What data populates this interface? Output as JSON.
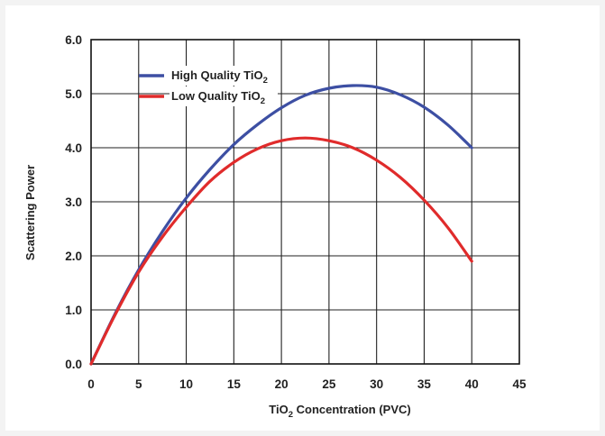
{
  "chart_data": {
    "type": "line",
    "title": "",
    "xlabel": {
      "pre": "TiO",
      "sub": "2",
      "post": " Concentration (PVC)"
    },
    "ylabel": "Scattering Power",
    "xlim": [
      0,
      45
    ],
    "ylim": [
      0,
      6
    ],
    "x_ticks": [
      "0",
      "5",
      "10",
      "15",
      "20",
      "25",
      "30",
      "35",
      "40",
      "45"
    ],
    "y_ticks": [
      "0.0",
      "1.0",
      "2.0",
      "3.0",
      "4.0",
      "5.0",
      "6.0"
    ],
    "grid": true,
    "legend_position": "top-left",
    "series": [
      {
        "name": {
          "pre": "High Quality TiO",
          "sub": "2"
        },
        "color": "#3d4fa3",
        "x": [
          0,
          2.5,
          5,
          7.5,
          10,
          12.5,
          15,
          17.5,
          20,
          22.5,
          25,
          27.5,
          30,
          32.5,
          35,
          37.5,
          40
        ],
        "y": [
          0.0,
          0.92,
          1.74,
          2.45,
          3.07,
          3.6,
          4.06,
          4.43,
          4.74,
          4.97,
          5.1,
          5.15,
          5.12,
          4.98,
          4.75,
          4.42,
          4.0
        ]
      },
      {
        "name": {
          "pre": "Low Quality TiO",
          "sub": "2"
        },
        "color": "#e02b2b",
        "x": [
          0,
          2.5,
          5,
          7.5,
          10,
          12.5,
          15,
          17.5,
          20,
          22.5,
          25,
          27.5,
          30,
          32.5,
          35,
          37.5,
          40
        ],
        "y": [
          0.0,
          0.9,
          1.7,
          2.35,
          2.9,
          3.38,
          3.73,
          3.98,
          4.13,
          4.18,
          4.13,
          4.0,
          3.77,
          3.45,
          3.03,
          2.52,
          1.9
        ]
      }
    ]
  }
}
